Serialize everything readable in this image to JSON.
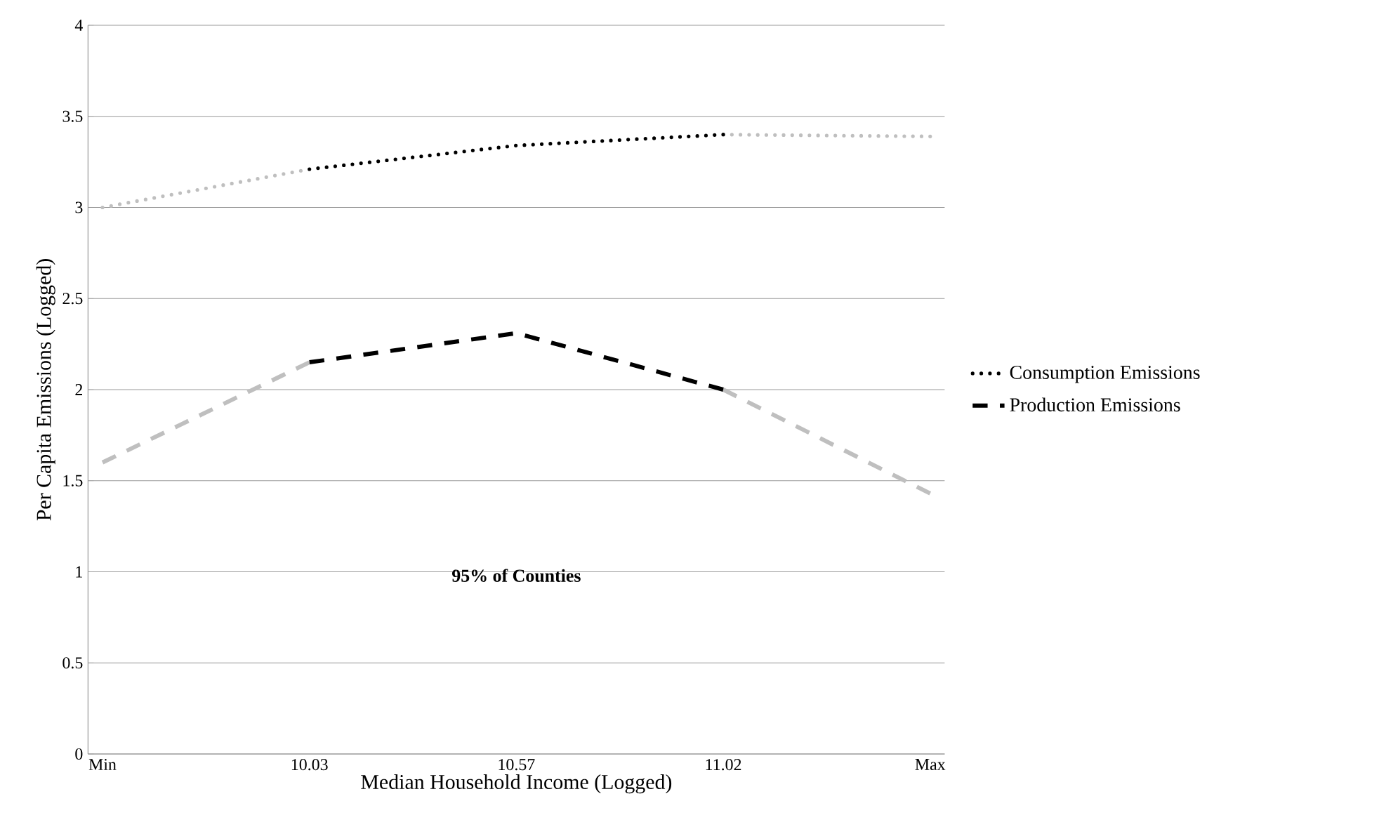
{
  "chart_data": {
    "type": "line",
    "xlabel": "Median Household Income (Logged)",
    "ylabel": "Per Capita Emissions (Logged)",
    "categories": [
      "Min",
      "10.03",
      "10.57",
      "11.02",
      "Max"
    ],
    "ylim": [
      0,
      4
    ],
    "yticks": [
      0,
      0.5,
      1,
      1.5,
      2,
      2.5,
      3,
      3.5,
      4
    ],
    "grid": "y",
    "legend": "right",
    "marker": "none",
    "series": [
      {
        "color": "#bfbfbf",
        "line_style": "dotted",
        "values": [
          3.0,
          3.21,
          null,
          null,
          null
        ]
      },
      {
        "name": "Consumption Emissions",
        "color": "#000000",
        "line_style": "dotted",
        "values": [
          null,
          3.21,
          3.34,
          3.4,
          null
        ]
      },
      {
        "color": "#bfbfbf",
        "line_style": "dotted",
        "values": [
          null,
          null,
          null,
          3.4,
          3.39
        ]
      },
      {
        "color": "#bfbfbf",
        "line_style": "dashed",
        "values": [
          1.6,
          2.15,
          null,
          null,
          null
        ]
      },
      {
        "name": "Production Emissions",
        "color": "#000000",
        "line_style": "dashed",
        "values": [
          null,
          2.15,
          2.31,
          2.0,
          null
        ]
      },
      {
        "color": "#bfbfbf",
        "line_style": "dashed",
        "values": [
          null,
          null,
          null,
          2.0,
          1.43
        ]
      }
    ],
    "annotations": [
      "95% of Counties"
    ]
  }
}
